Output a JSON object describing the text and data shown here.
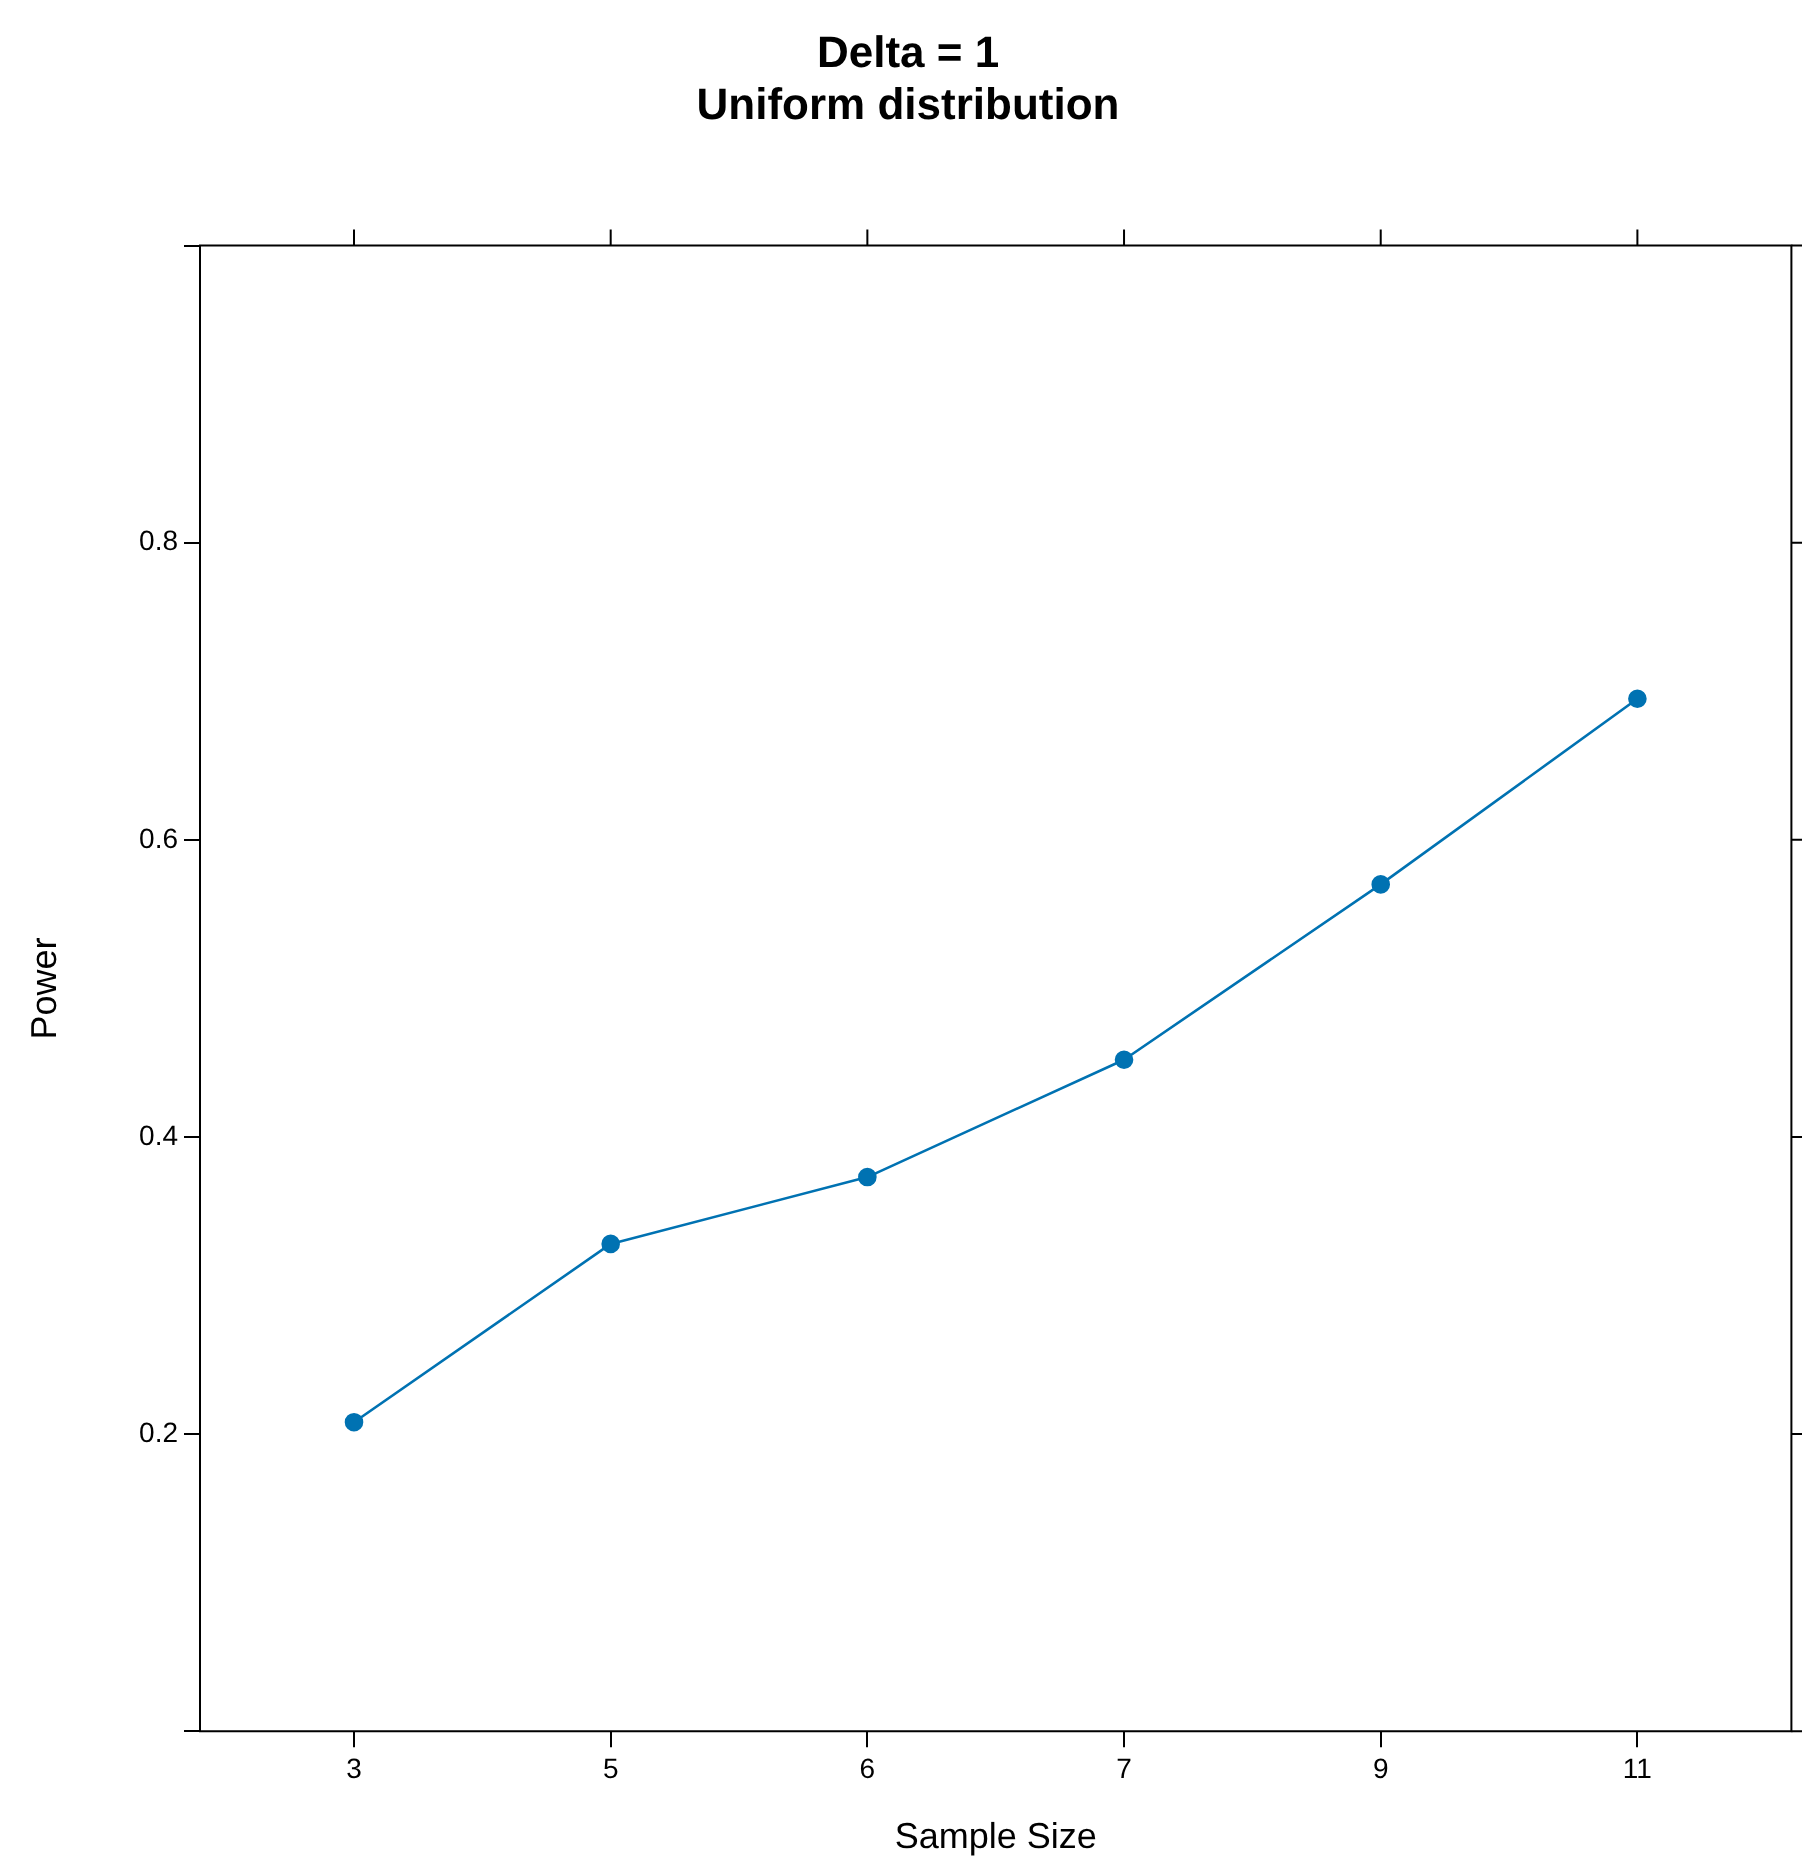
{
  "chart_data": {
    "type": "line",
    "title": "Delta = 1\nUniform distribution",
    "xlabel": "Sample Size",
    "ylabel": "Power",
    "categories": [
      "3",
      "5",
      "6",
      "7",
      "9",
      "11"
    ],
    "series": [
      {
        "color": "#0072b2",
        "values": [
          0.208,
          0.328,
          0.373,
          0.452,
          0.57,
          0.695
        ]
      }
    ],
    "ylim": [
      0,
      1
    ],
    "yticks": [
      {
        "value": 0,
        "label": null
      },
      0.2,
      0.4,
      0.6,
      0.8,
      {
        "value": 1,
        "label": null
      }
    ],
    "grid": false,
    "legend": false,
    "marker": "circle",
    "line_style": "solid"
  }
}
